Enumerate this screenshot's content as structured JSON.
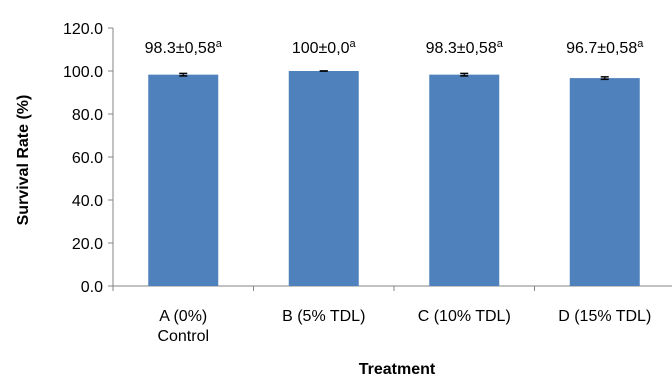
{
  "chart_data": {
    "type": "bar",
    "categories": [
      [
        "A (0%)",
        "Control"
      ],
      [
        "B (5% TDL)"
      ],
      [
        "C (10% TDL)"
      ],
      [
        "D (15% TDL)"
      ]
    ],
    "values": [
      98.3,
      100.0,
      98.3,
      96.7
    ],
    "errors": [
      0.58,
      0.0,
      0.58,
      0.58
    ],
    "data_labels": [
      {
        "text": "98.3±0,58",
        "sup": "a"
      },
      {
        "text": "100±0,0",
        "sup": "a"
      },
      {
        "text": "98.3±0,58",
        "sup": "a"
      },
      {
        "text": "96.7±0,58",
        "sup": "a"
      }
    ],
    "xlabel": "Treatment",
    "ylabel": "Survival Rate (%)",
    "ylim": [
      0,
      120
    ],
    "yticks": [
      "0.0",
      "20.0",
      "40.0",
      "60.0",
      "80.0",
      "100.0",
      "120.0"
    ],
    "grid": false,
    "legend": "none",
    "bar_color": "#4F81BD"
  }
}
